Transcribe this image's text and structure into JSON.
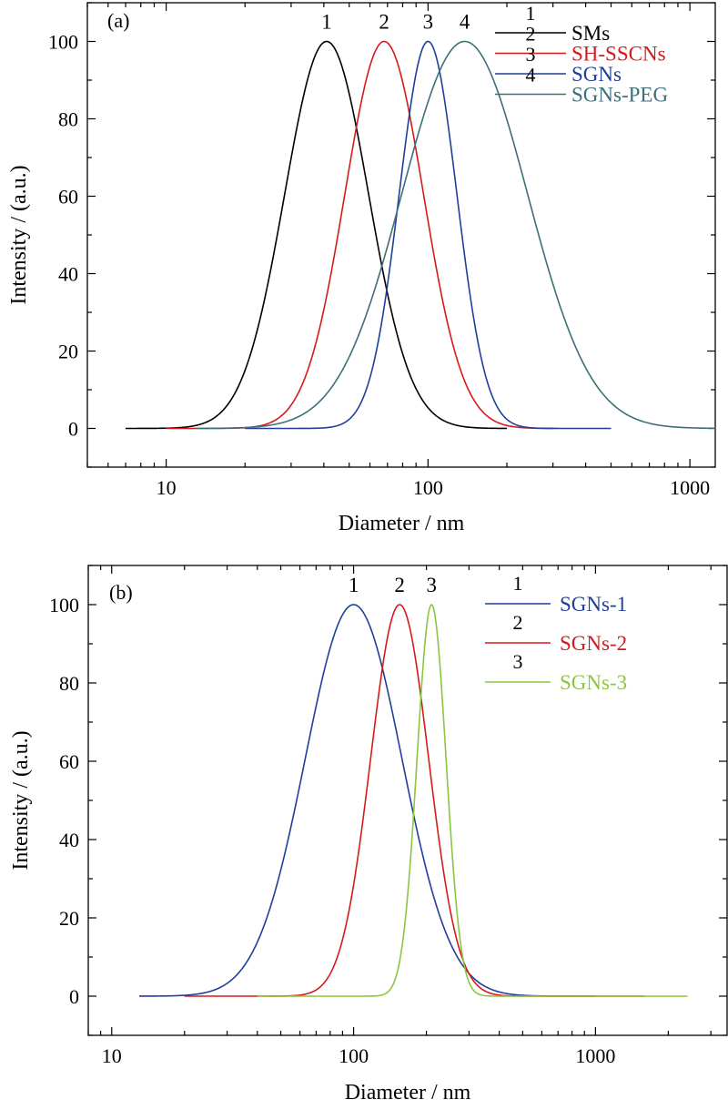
{
  "chart_data": [
    {
      "panel_label": "(a)",
      "type": "line",
      "xscale": "log",
      "xlim": [
        5,
        1250
      ],
      "ylim": [
        -10,
        110
      ],
      "xlabel": "Diameter / nm",
      "ylabel": "Intensity / (a.u.)",
      "x_ticks": [
        10,
        100,
        1000
      ],
      "x_tick_labels": [
        "10",
        "100",
        "1000"
      ],
      "y_ticks": [
        0,
        20,
        40,
        60,
        80,
        100
      ],
      "y_tick_labels": [
        "0",
        "20",
        "40",
        "60",
        "80",
        "100"
      ],
      "legend_position": "top-right",
      "series": [
        {
          "id": "1",
          "name": "SMs",
          "color": "#000000",
          "peak_x": 41,
          "log_sigma": 0.16,
          "x_range": [
            7,
            200
          ],
          "peak_y": 100
        },
        {
          "id": "2",
          "name": "SH-SSCNs",
          "color": "#d7191c",
          "peak_x": 68,
          "log_sigma": 0.15,
          "x_range": [
            10,
            300
          ],
          "peak_y": 100
        },
        {
          "id": "3",
          "name": "SGNs",
          "color": "#1f3f9a",
          "peak_x": 100,
          "log_sigma": 0.11,
          "x_range": [
            20,
            500
          ],
          "peak_y": 100
        },
        {
          "id": "4",
          "name": "SGNs-PEG",
          "color": "#3d6e7a",
          "peak_x": 138,
          "log_sigma": 0.24,
          "x_range": [
            13,
            1250
          ],
          "peak_y": 100
        }
      ]
    },
    {
      "panel_label": "(b)",
      "type": "line",
      "xscale": "log",
      "xlim": [
        8,
        3500
      ],
      "ylim": [
        -10,
        110
      ],
      "xlabel": "Diameter / nm",
      "ylabel": "Intensity / (a.u.)",
      "x_ticks": [
        10,
        100,
        1000
      ],
      "x_tick_labels": [
        "10",
        "100",
        "1000"
      ],
      "y_ticks": [
        0,
        20,
        40,
        60,
        80,
        100
      ],
      "y_tick_labels": [
        "0",
        "20",
        "40",
        "60",
        "80",
        "100"
      ],
      "legend_position": "top-right",
      "series": [
        {
          "id": "1",
          "name": "SGNs-1",
          "color": "#1f3f9a",
          "peak_x": 100,
          "log_sigma": 0.2,
          "x_range": [
            13,
            1000
          ],
          "peak_y": 100
        },
        {
          "id": "2",
          "name": "SGNs-2",
          "color": "#d7191c",
          "peak_x": 155,
          "log_sigma": 0.12,
          "x_range": [
            20,
            1600
          ],
          "peak_y": 100
        },
        {
          "id": "3",
          "name": "SGNs-3",
          "color": "#8cc63f",
          "peak_x": 210,
          "log_sigma": 0.06,
          "x_range": [
            40,
            2400
          ],
          "peak_y": 100
        }
      ]
    }
  ]
}
